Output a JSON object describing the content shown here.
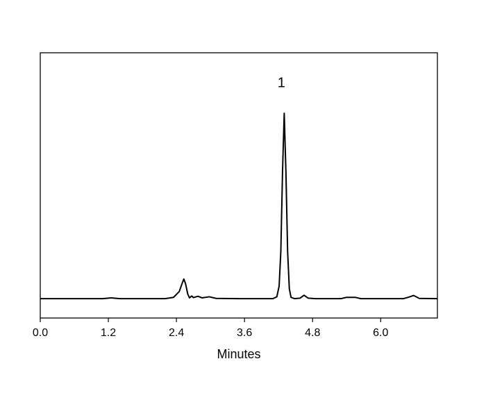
{
  "chart_data": {
    "type": "line",
    "x_label": "Minutes",
    "xlim": [
      0,
      7.0
    ],
    "ylim": [
      0,
      100
    ],
    "xticks": [
      {
        "value": 0,
        "label": "0.0"
      },
      {
        "value": 1.2,
        "label": "1.2"
      },
      {
        "value": 2.4,
        "label": "2.4"
      },
      {
        "value": 3.6,
        "label": "3.6"
      },
      {
        "value": 4.8,
        "label": "4.8"
      },
      {
        "value": 6.0,
        "label": "6.0"
      }
    ],
    "annotations": [
      {
        "text": "1",
        "x": 4.25,
        "y": 87
      }
    ],
    "series": [
      {
        "color": "#000000",
        "x": [
          0,
          1.1,
          1.25,
          1.4,
          2.2,
          2.35,
          2.45,
          2.5,
          2.53,
          2.56,
          2.6,
          2.63,
          2.67,
          2.7,
          2.78,
          2.85,
          2.98,
          3.1,
          3.5,
          4.1,
          4.17,
          4.21,
          4.24,
          4.27,
          4.3,
          4.33,
          4.36,
          4.39,
          4.42,
          4.48,
          4.58,
          4.65,
          4.72,
          4.85,
          5.3,
          5.4,
          5.55,
          5.65,
          6.4,
          6.5,
          6.58,
          6.68,
          7.0
        ],
        "values": [
          7.3,
          7.3,
          7.6,
          7.3,
          7.3,
          7.8,
          10,
          13,
          14.7,
          13,
          9,
          7.6,
          8.3,
          7.7,
          8.2,
          7.6,
          8.0,
          7.4,
          7.3,
          7.3,
          8,
          12,
          25,
          55,
          77.2,
          55,
          25,
          11,
          7.8,
          7.3,
          7.5,
          8.6,
          7.5,
          7.3,
          7.3,
          7.8,
          7.8,
          7.3,
          7.3,
          7.9,
          8.5,
          7.4,
          7.3
        ]
      }
    ]
  }
}
